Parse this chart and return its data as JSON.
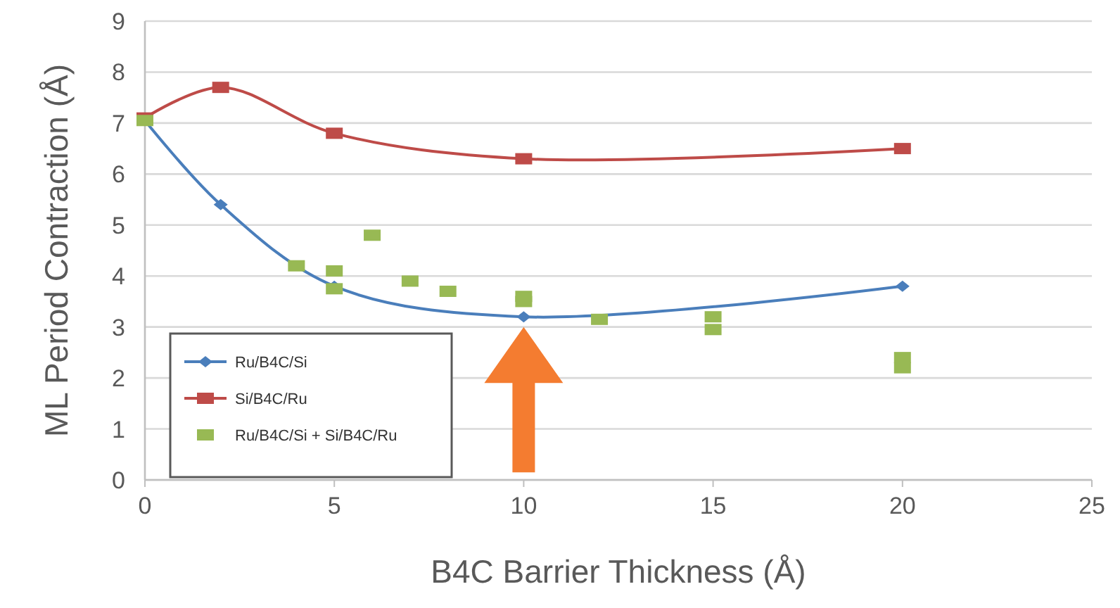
{
  "chart_data": {
    "type": "line",
    "xlabel": "B4C Barrier Thickness (Å)",
    "ylabel": "ML Period Contraction (Å)",
    "xlim": [
      0,
      25
    ],
    "xticks": [
      0,
      5,
      10,
      15,
      20,
      25
    ],
    "ylim": [
      0,
      9
    ],
    "yticks": [
      0,
      1,
      2,
      3,
      4,
      5,
      6,
      7,
      8,
      9
    ],
    "grid": "y",
    "legend": "bottom left",
    "series": [
      {
        "name": "Ru/B4C/Si",
        "color": "#4a7ebb",
        "marker": "diamond",
        "x": [
          0,
          2,
          5,
          10,
          20
        ],
        "values": [
          7.05,
          5.4,
          3.8,
          3.2,
          3.8
        ]
      },
      {
        "name": "Si/B4C/Ru",
        "color": "#be4b48",
        "marker": "square",
        "x": [
          0,
          2,
          5,
          10,
          20
        ],
        "values": [
          7.1,
          7.7,
          6.8,
          6.3,
          6.5
        ]
      },
      {
        "name": "Ru/B4C/Si + Si/B4C/Ru",
        "color": "#98b954",
        "type": "scatter",
        "marker": "square",
        "x": [
          0,
          4,
          5,
          5,
          6,
          7,
          8,
          10,
          10,
          12,
          15,
          15,
          20,
          20
        ],
        "values": [
          7.05,
          4.2,
          4.1,
          3.75,
          4.8,
          3.9,
          3.7,
          3.6,
          3.5,
          3.15,
          3.2,
          2.95,
          2.4,
          2.2
        ]
      }
    ]
  }
}
